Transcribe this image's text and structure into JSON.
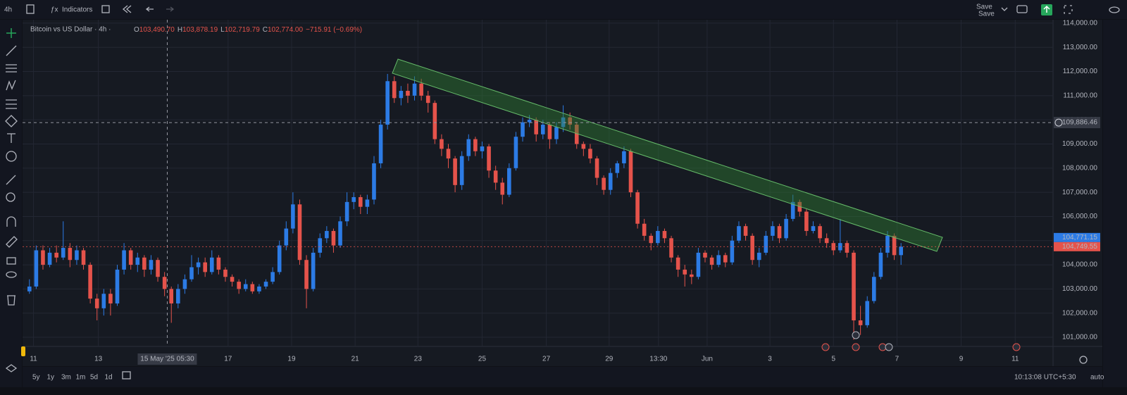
{
  "toolbar": {
    "interval": "4h",
    "indicators": "Indicators",
    "save": "Save",
    "save_sub": "Save"
  },
  "chart_data": {
    "type": "candlestick",
    "title": "Bitcoin vs US Dollar · 4h ·",
    "legend": [
      "O",
      "103,490.70",
      "H",
      "103,878.19",
      "L",
      "102,719.79",
      "C",
      "102,774.00",
      "−715.91 (−0.69%)"
    ],
    "up_color": "#2c7be5",
    "down_color": "#e5534b",
    "xlim": [
      -0.5,
      151.5
    ],
    "xticks": [
      {
        "value": 0.6,
        "label": "11"
      },
      {
        "value": 10.2,
        "label": "13"
      },
      {
        "value": 29.4,
        "label": "17"
      },
      {
        "value": 38.8,
        "label": "19"
      },
      {
        "value": 48.2,
        "label": "21"
      },
      {
        "value": 57.5,
        "label": "23"
      },
      {
        "value": 67,
        "label": "25"
      },
      {
        "value": 76.5,
        "label": "27"
      },
      {
        "value": 85.8,
        "label": "29"
      },
      {
        "value": 93.1,
        "label": "13:30"
      },
      {
        "value": 100.3,
        "label": "Jun"
      },
      {
        "value": 109.6,
        "label": "3"
      },
      {
        "value": 119,
        "label": "5"
      },
      {
        "value": 128.4,
        "label": "7"
      },
      {
        "value": 137.9,
        "label": "9"
      },
      {
        "value": 145.9,
        "label": "11"
      }
    ],
    "ylim": [
      100680,
      114260
    ],
    "yticks": [
      {
        "value": 101000,
        "label": "101,000.00"
      },
      {
        "value": 102000,
        "label": "102,000.00"
      },
      {
        "value": 103000,
        "label": "103,000.00"
      },
      {
        "value": 104000,
        "label": "104,000.00"
      },
      {
        "value": 105000,
        "label": "105,000.00"
      },
      {
        "value": 106000,
        "label": "106,000.00"
      },
      {
        "value": 107000,
        "label": "107,000.00"
      },
      {
        "value": 108000,
        "label": "108,000.00"
      },
      {
        "value": 109000,
        "label": "109,000.00"
      },
      {
        "value": 110000,
        "label": "110,000.00"
      },
      {
        "value": 111000,
        "label": "111,000.00"
      },
      {
        "value": 112000,
        "label": "112,000.00"
      },
      {
        "value": 113000,
        "label": "113,000.00"
      },
      {
        "value": 114000,
        "label": "114,000.00"
      }
    ],
    "grid": true,
    "crosshair": {
      "x": 20.4,
      "x_label": "15 May '25  05:30",
      "y": 109886.46,
      "y_label": "109,886.46"
    },
    "bid": {
      "value": 104771.15,
      "label": "104,771.15"
    },
    "last_price": {
      "value": 104749.55,
      "label": "104,749.55"
    },
    "ohlc": [
      [
        102900,
        103400,
        102800,
        103100
      ],
      [
        103100,
        104800,
        103000,
        104600
      ],
      [
        104600,
        104800,
        103800,
        104000
      ],
      [
        104000,
        104700,
        103900,
        104500
      ],
      [
        104500,
        104800,
        104100,
        104300
      ],
      [
        104300,
        105800,
        104200,
        104700
      ],
      [
        104700,
        104900,
        103900,
        104200
      ],
      [
        104200,
        104800,
        104000,
        104600
      ],
      [
        104600,
        104700,
        103800,
        104000
      ],
      [
        104000,
        104100,
        102400,
        102600
      ],
      [
        102600,
        102800,
        101700,
        102200
      ],
      [
        102200,
        103000,
        101900,
        102800
      ],
      [
        102800,
        103000,
        101900,
        102400
      ],
      [
        102400,
        104000,
        102300,
        103800
      ],
      [
        103800,
        104900,
        103600,
        104600
      ],
      [
        104600,
        104700,
        103800,
        104000
      ],
      [
        104000,
        104500,
        103700,
        104300
      ],
      [
        104300,
        104400,
        103500,
        103800
      ],
      [
        103800,
        104400,
        103600,
        104200
      ],
      [
        104200,
        104300,
        103300,
        103500
      ],
      [
        103500,
        103700,
        102700,
        103000
      ],
      [
        103000,
        103100,
        101600,
        102400
      ],
      [
        102400,
        103200,
        102200,
        103000
      ],
      [
        103000,
        103600,
        102800,
        103400
      ],
      [
        103400,
        104400,
        103300,
        103900
      ],
      [
        103900,
        104300,
        103600,
        104100
      ],
      [
        104100,
        104300,
        103500,
        103700
      ],
      [
        103700,
        104600,
        103600,
        104300
      ],
      [
        104300,
        104400,
        103600,
        103800
      ],
      [
        103800,
        103900,
        103300,
        103500
      ],
      [
        103500,
        103600,
        103100,
        103300
      ],
      [
        103300,
        103400,
        102800,
        103000
      ],
      [
        103000,
        103400,
        102900,
        103200
      ],
      [
        103200,
        103300,
        102800,
        102900
      ],
      [
        102900,
        103200,
        102800,
        103100
      ],
      [
        103100,
        103400,
        103000,
        103300
      ],
      [
        103300,
        103900,
        103200,
        103700
      ],
      [
        103700,
        105000,
        103600,
        104800
      ],
      [
        104800,
        105800,
        104600,
        105500
      ],
      [
        105500,
        107000,
        105300,
        106500
      ],
      [
        106500,
        106700,
        104000,
        104200
      ],
      [
        104200,
        104400,
        102200,
        103000
      ],
      [
        103000,
        104700,
        102900,
        104500
      ],
      [
        104500,
        105300,
        104300,
        105100
      ],
      [
        105100,
        105600,
        104900,
        105400
      ],
      [
        105400,
        105500,
        104500,
        104800
      ],
      [
        104800,
        106000,
        104700,
        105800
      ],
      [
        105800,
        107000,
        105600,
        106600
      ],
      [
        106600,
        107000,
        106300,
        106800
      ],
      [
        106800,
        106900,
        106100,
        106400
      ],
      [
        106400,
        106900,
        106100,
        106700
      ],
      [
        106700,
        108500,
        106500,
        108200
      ],
      [
        108200,
        110000,
        108000,
        109800
      ],
      [
        109800,
        111900,
        109600,
        111600
      ],
      [
        111600,
        111800,
        110700,
        110900
      ],
      [
        110900,
        111400,
        110600,
        111200
      ],
      [
        111200,
        111500,
        110700,
        111000
      ],
      [
        111000,
        111800,
        110800,
        111500
      ],
      [
        111500,
        111700,
        110800,
        111000
      ],
      [
        111000,
        111200,
        110300,
        110700
      ],
      [
        110700,
        110800,
        109000,
        109200
      ],
      [
        109200,
        109400,
        108500,
        108800
      ],
      [
        108800,
        109000,
        108000,
        108400
      ],
      [
        108400,
        108500,
        107000,
        107300
      ],
      [
        107300,
        108700,
        107100,
        108500
      ],
      [
        108500,
        109400,
        108300,
        109200
      ],
      [
        109200,
        109300,
        108500,
        108700
      ],
      [
        108700,
        109100,
        108400,
        108900
      ],
      [
        108900,
        109000,
        107600,
        107900
      ],
      [
        107900,
        108100,
        107100,
        107400
      ],
      [
        107400,
        107600,
        106500,
        106900
      ],
      [
        106900,
        108200,
        106800,
        108000
      ],
      [
        108000,
        109500,
        107900,
        109300
      ],
      [
        109300,
        110100,
        109100,
        109900
      ],
      [
        109900,
        110200,
        109700,
        110000
      ],
      [
        110000,
        110100,
        109100,
        109400
      ],
      [
        109400,
        110000,
        109200,
        109800
      ],
      [
        109800,
        109900,
        108800,
        109200
      ],
      [
        109200,
        109900,
        109000,
        109700
      ],
      [
        109700,
        110600,
        109500,
        110100
      ],
      [
        110100,
        110300,
        109600,
        109800
      ],
      [
        109800,
        109900,
        108800,
        109000
      ],
      [
        109000,
        109100,
        108500,
        108800
      ],
      [
        108800,
        109000,
        108200,
        108400
      ],
      [
        108400,
        108500,
        107300,
        107600
      ],
      [
        107600,
        107700,
        106900,
        107100
      ],
      [
        107100,
        108000,
        106900,
        107800
      ],
      [
        107800,
        108300,
        107600,
        108200
      ],
      [
        108200,
        108900,
        108000,
        108700
      ],
      [
        108700,
        108800,
        106800,
        107000
      ],
      [
        107000,
        107100,
        105500,
        105700
      ],
      [
        105700,
        105900,
        105000,
        105200
      ],
      [
        105200,
        105300,
        104600,
        104900
      ],
      [
        104900,
        105600,
        104800,
        105400
      ],
      [
        105400,
        105500,
        104900,
        105100
      ],
      [
        105100,
        105200,
        104100,
        104300
      ],
      [
        104300,
        104400,
        103500,
        103800
      ],
      [
        103800,
        104000,
        103100,
        103600
      ],
      [
        103600,
        103800,
        103200,
        103500
      ],
      [
        103500,
        104700,
        103400,
        104500
      ],
      [
        104500,
        104600,
        104100,
        104300
      ],
      [
        104300,
        104400,
        103800,
        104000
      ],
      [
        104000,
        104600,
        103900,
        104400
      ],
      [
        104400,
        104500,
        103900,
        104100
      ],
      [
        104100,
        105200,
        104000,
        105000
      ],
      [
        105000,
        105800,
        104900,
        105600
      ],
      [
        105600,
        105700,
        105000,
        105200
      ],
      [
        105200,
        105300,
        104000,
        104200
      ],
      [
        104200,
        104700,
        103900,
        104500
      ],
      [
        104500,
        105400,
        104400,
        105200
      ],
      [
        105200,
        105800,
        105000,
        105600
      ],
      [
        105600,
        105700,
        104900,
        105100
      ],
      [
        105100,
        106100,
        105000,
        105900
      ],
      [
        105900,
        106900,
        105800,
        106600
      ],
      [
        106600,
        106700,
        106000,
        106200
      ],
      [
        106200,
        106300,
        105200,
        105400
      ],
      [
        105400,
        105800,
        105300,
        105600
      ],
      [
        105600,
        105700,
        104900,
        105100
      ],
      [
        105100,
        105300,
        104700,
        104900
      ],
      [
        104900,
        105000,
        104400,
        104600
      ],
      [
        104600,
        105900,
        104500,
        104900
      ],
      [
        104900,
        105000,
        104300,
        104500
      ],
      [
        104500,
        104600,
        100900,
        101700
      ],
      [
        101700,
        102300,
        101100,
        101500
      ],
      [
        101500,
        102700,
        101400,
        102500
      ],
      [
        102500,
        103700,
        102400,
        103500
      ],
      [
        103500,
        104700,
        103400,
        104500
      ],
      [
        104500,
        105400,
        104300,
        105200
      ],
      [
        105200,
        105300,
        104200,
        104400
      ],
      [
        104400,
        104900,
        104000,
        104749
      ]
    ]
  },
  "range_buttons": [
    "5y",
    "1y",
    "3m",
    "1m",
    "5d",
    "1d"
  ],
  "clock": "10:13:08 UTC+5:30",
  "scale_mode": "auto"
}
